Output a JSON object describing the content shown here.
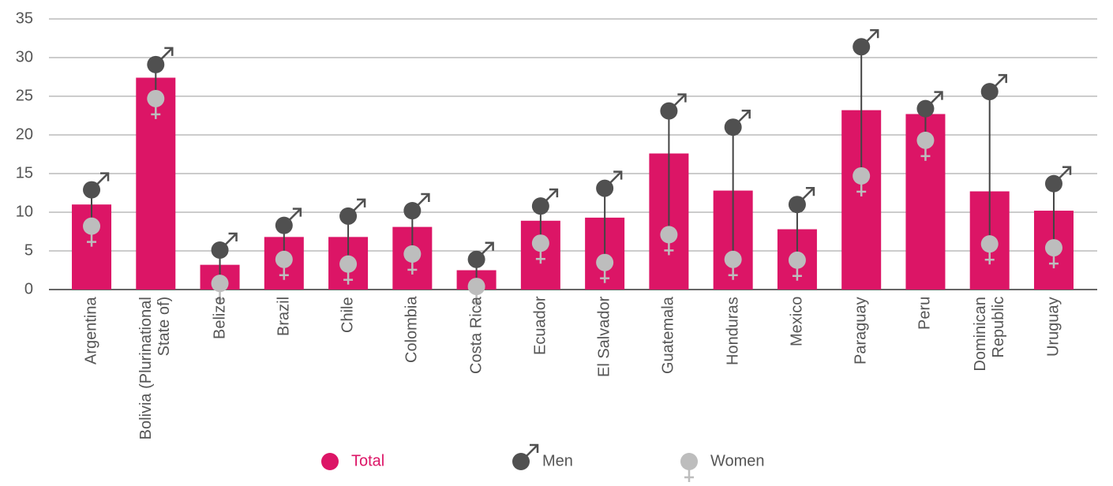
{
  "chart_data": {
    "type": "bar",
    "categories": [
      "Argentina",
      "Bolivia (Plurinational State of)",
      "Belize",
      "Brazil",
      "Chile",
      "Colombia",
      "Costa Rica",
      "Ecuador",
      "El Salvador",
      "Guatemala",
      "Honduras",
      "Mexico",
      "Paraguay",
      "Peru",
      "Dominican Republic",
      "Uruguay"
    ],
    "series": [
      {
        "name": "Total",
        "color": "#dc1566",
        "values": [
          11.0,
          27.4,
          3.2,
          6.8,
          6.8,
          8.1,
          2.5,
          8.9,
          9.3,
          17.6,
          12.8,
          7.8,
          23.2,
          22.7,
          12.7,
          10.2
        ]
      },
      {
        "name": "Men",
        "color": "#505050",
        "values": [
          12.9,
          29.1,
          5.1,
          8.3,
          9.5,
          10.2,
          3.9,
          10.8,
          13.1,
          23.1,
          21.0,
          11.0,
          31.4,
          23.4,
          25.6,
          13.7
        ]
      },
      {
        "name": "Women",
        "color": "#bdbdbd",
        "values": [
          8.2,
          24.7,
          0.8,
          3.9,
          3.3,
          4.6,
          0.4,
          6.0,
          3.5,
          7.1,
          3.9,
          3.8,
          14.7,
          19.3,
          5.9,
          5.4
        ]
      }
    ],
    "ylim": [
      0,
      35
    ],
    "yticks": [
      0,
      5,
      10,
      15,
      20,
      25,
      30,
      35
    ],
    "grid": true
  }
}
